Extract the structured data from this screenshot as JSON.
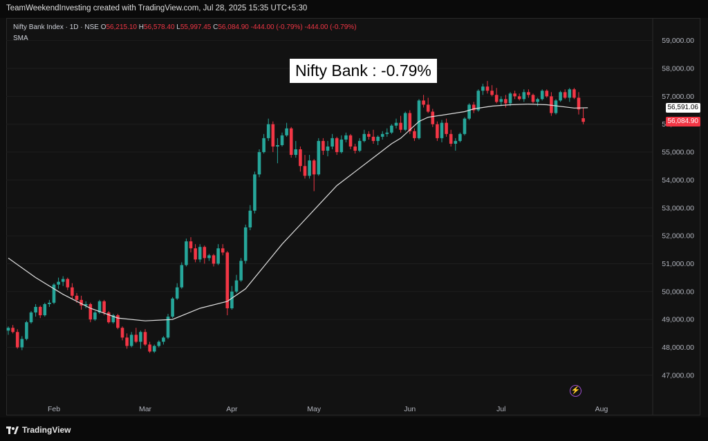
{
  "header": {
    "attribution": "TeamWeekendInvesting created with TradingView.com, Jul 28, 2025 15:35 UTC+5:30"
  },
  "legend": {
    "name": "Nifty Bank Index · 1D · NSE",
    "open_label": "O",
    "open": "56,215.10",
    "high_label": "H",
    "high": "56,578.40",
    "low_label": "L",
    "low": "55,997.45",
    "close_label": "C",
    "close": "56,084.90",
    "change": "-444.00 (-0.79%)",
    "change2": "-444.00 (-0.79%)",
    "indicator": "SMA"
  },
  "annotation": "Nifty Bank : -0.79%",
  "price_tags": {
    "sma": "56,591.06",
    "last": "56,084.90"
  },
  "footer": {
    "brand": "TradingView"
  },
  "colors": {
    "up": "#26a69a",
    "down": "#f23645",
    "sma": "#e0e0e0",
    "background": "#121212",
    "grid": "#1e1e1e",
    "axis_text": "#b2b5be",
    "tag_sma_bg": "#ffffff",
    "tag_last_bg": "#f23645"
  },
  "chart_data": {
    "type": "candlestick",
    "title": "",
    "ylim": [
      46000,
      59500
    ],
    "yticks": [
      47000,
      48000,
      49000,
      50000,
      51000,
      52000,
      53000,
      54000,
      55000,
      56000,
      57000,
      58000,
      59000
    ],
    "ytick_labels": [
      "47,000.00",
      "48,000.00",
      "49,000.00",
      "50,000.00",
      "51,000.00",
      "52,000.00",
      "53,000.00",
      "54,000.00",
      "55,000.00",
      "56,000.00",
      "57,000.00",
      "58,000.00",
      "59,000.00"
    ],
    "xaxis_labels": [
      {
        "label": "Feb",
        "index": 10
      },
      {
        "label": "Mar",
        "index": 30
      },
      {
        "label": "Apr",
        "index": 49
      },
      {
        "label": "May",
        "index": 67
      },
      {
        "label": "Jun",
        "index": 88
      },
      {
        "label": "Jul",
        "index": 108
      },
      {
        "label": "Aug",
        "index": 130
      }
    ],
    "candles": [
      [
        48600,
        48750,
        48450,
        48700
      ],
      [
        48700,
        48800,
        48500,
        48550
      ],
      [
        48550,
        48650,
        47950,
        48000
      ],
      [
        48000,
        48400,
        47900,
        48300
      ],
      [
        48300,
        48950,
        48250,
        48900
      ],
      [
        48900,
        49300,
        48850,
        49250
      ],
      [
        49250,
        49550,
        49100,
        49450
      ],
      [
        49450,
        49500,
        49050,
        49150
      ],
      [
        49150,
        49600,
        49100,
        49550
      ],
      [
        49550,
        49700,
        49450,
        49600
      ],
      [
        49600,
        50300,
        49550,
        50250
      ],
      [
        50250,
        50500,
        50100,
        50350
      ],
      [
        50350,
        50550,
        50200,
        50450
      ],
      [
        50450,
        50500,
        50050,
        50150
      ],
      [
        50150,
        50300,
        49750,
        49850
      ],
      [
        49850,
        49950,
        49600,
        49700
      ],
      [
        49700,
        49850,
        49350,
        49500
      ],
      [
        49500,
        49650,
        49400,
        49550
      ],
      [
        49550,
        49600,
        48900,
        49000
      ],
      [
        49000,
        49300,
        48950,
        49250
      ],
      [
        49250,
        49700,
        49200,
        49650
      ],
      [
        49650,
        49700,
        49150,
        49250
      ],
      [
        49250,
        49300,
        48850,
        48900
      ],
      [
        48900,
        49200,
        48850,
        49150
      ],
      [
        49150,
        49200,
        48650,
        48700
      ],
      [
        48700,
        48750,
        48250,
        48350
      ],
      [
        48350,
        48500,
        47950,
        48050
      ],
      [
        48050,
        48550,
        48000,
        48450
      ],
      [
        48450,
        48700,
        48150,
        48200
      ],
      [
        48200,
        48600,
        47950,
        48550
      ],
      [
        48550,
        48650,
        48050,
        48100
      ],
      [
        48100,
        48200,
        47800,
        47850
      ],
      [
        47850,
        48100,
        47800,
        48050
      ],
      [
        48050,
        48250,
        48000,
        48200
      ],
      [
        48200,
        48400,
        48100,
        48350
      ],
      [
        48350,
        49200,
        48300,
        49100
      ],
      [
        49100,
        49800,
        49050,
        49750
      ],
      [
        49750,
        50300,
        49700,
        50150
      ],
      [
        50150,
        51050,
        50100,
        50950
      ],
      [
        50950,
        51900,
        50900,
        51800
      ],
      [
        51800,
        51950,
        51400,
        51550
      ],
      [
        51550,
        51700,
        51050,
        51150
      ],
      [
        51150,
        51700,
        51050,
        51600
      ],
      [
        51600,
        51650,
        51000,
        51200
      ],
      [
        51200,
        51350,
        51100,
        51300
      ],
      [
        51300,
        51350,
        50900,
        51000
      ],
      [
        51000,
        51700,
        50950,
        51550
      ],
      [
        51550,
        51700,
        51300,
        51400
      ],
      [
        51400,
        51450,
        49150,
        49400
      ],
      [
        49400,
        50200,
        49350,
        50000
      ],
      [
        50000,
        50600,
        49950,
        50400
      ],
      [
        50400,
        51200,
        50350,
        51100
      ],
      [
        51100,
        52400,
        51000,
        52300
      ],
      [
        52300,
        53100,
        52200,
        52900
      ],
      [
        52900,
        54300,
        52800,
        54200
      ],
      [
        54200,
        55100,
        54100,
        55000
      ],
      [
        55000,
        55650,
        54950,
        55500
      ],
      [
        55500,
        56200,
        55400,
        56000
      ],
      [
        56000,
        56100,
        55000,
        55200
      ],
      [
        55200,
        55500,
        54600,
        55250
      ],
      [
        55250,
        55700,
        55200,
        55600
      ],
      [
        55600,
        56050,
        55550,
        55850
      ],
      [
        55850,
        55900,
        54800,
        54900
      ],
      [
        54900,
        55400,
        54800,
        55100
      ],
      [
        55100,
        55200,
        54300,
        54500
      ],
      [
        54500,
        54900,
        54050,
        54150
      ],
      [
        54150,
        54900,
        54050,
        54700
      ],
      [
        54700,
        54750,
        53600,
        54200
      ],
      [
        54200,
        55500,
        54150,
        55400
      ],
      [
        55400,
        55500,
        54900,
        55050
      ],
      [
        55050,
        55400,
        54850,
        55200
      ],
      [
        55200,
        55650,
        55100,
        55500
      ],
      [
        55500,
        55550,
        54900,
        55000
      ],
      [
        55000,
        55600,
        54950,
        55450
      ],
      [
        55450,
        55700,
        55350,
        55600
      ],
      [
        55600,
        55650,
        55100,
        55200
      ],
      [
        55200,
        55300,
        54950,
        55050
      ],
      [
        55050,
        55500,
        55000,
        55400
      ],
      [
        55400,
        55800,
        55350,
        55650
      ],
      [
        55650,
        55750,
        55450,
        55550
      ],
      [
        55550,
        55800,
        55300,
        55400
      ],
      [
        55400,
        55600,
        55250,
        55550
      ],
      [
        55550,
        55750,
        55450,
        55650
      ],
      [
        55650,
        55850,
        55550,
        55700
      ],
      [
        55700,
        56000,
        55650,
        55950
      ],
      [
        55950,
        56200,
        55850,
        56050
      ],
      [
        56050,
        56300,
        55700,
        55800
      ],
      [
        55800,
        56450,
        55750,
        56400
      ],
      [
        56400,
        56500,
        55650,
        55750
      ],
      [
        55750,
        55850,
        55400,
        55500
      ],
      [
        55500,
        56900,
        55450,
        56850
      ],
      [
        56850,
        57050,
        56600,
        56700
      ],
      [
        56700,
        56950,
        56400,
        56450
      ],
      [
        56450,
        56550,
        55900,
        56000
      ],
      [
        56000,
        56100,
        55400,
        55500
      ],
      [
        55500,
        56150,
        55350,
        56050
      ],
      [
        56050,
        56200,
        55550,
        55650
      ],
      [
        55650,
        55800,
        55200,
        55300
      ],
      [
        55300,
        55500,
        55050,
        55400
      ],
      [
        55400,
        55700,
        55350,
        55650
      ],
      [
        55650,
        56250,
        55600,
        56200
      ],
      [
        56200,
        56750,
        56150,
        56700
      ],
      [
        56700,
        56800,
        56400,
        56500
      ],
      [
        56500,
        57250,
        56450,
        57200
      ],
      [
        57200,
        57450,
        57050,
        57350
      ],
      [
        57350,
        57550,
        57100,
        57200
      ],
      [
        57200,
        57400,
        57000,
        57050
      ],
      [
        57050,
        57300,
        56750,
        56800
      ],
      [
        56800,
        57000,
        56650,
        56900
      ],
      [
        56900,
        57050,
        56600,
        56750
      ],
      [
        56750,
        57150,
        56650,
        57100
      ],
      [
        57100,
        57200,
        56900,
        57000
      ],
      [
        57000,
        57100,
        56850,
        56900
      ],
      [
        56900,
        57250,
        56800,
        57150
      ],
      [
        57150,
        57250,
        56950,
        57050
      ],
      [
        57050,
        57100,
        56750,
        56800
      ],
      [
        56800,
        56950,
        56650,
        56900
      ],
      [
        56900,
        57250,
        56850,
        57200
      ],
      [
        57200,
        57250,
        56950,
        57000
      ],
      [
        57000,
        57150,
        56300,
        56400
      ],
      [
        56400,
        56900,
        56350,
        56850
      ],
      [
        56850,
        57200,
        56800,
        57150
      ],
      [
        57150,
        57250,
        56900,
        56950
      ],
      [
        56950,
        57300,
        56800,
        57250
      ],
      [
        57250,
        57300,
        56900,
        56950
      ],
      [
        56950,
        57150,
        56350,
        56528.9
      ],
      [
        56215.1,
        56578.4,
        55997.45,
        56084.9
      ]
    ],
    "sma": [
      [
        0,
        51200
      ],
      [
        6,
        50500
      ],
      [
        12,
        49900
      ],
      [
        18,
        49400
      ],
      [
        24,
        49050
      ],
      [
        30,
        48950
      ],
      [
        36,
        49000
      ],
      [
        42,
        49400
      ],
      [
        48,
        49650
      ],
      [
        52,
        50100
      ],
      [
        56,
        50900
      ],
      [
        60,
        51700
      ],
      [
        64,
        52400
      ],
      [
        68,
        53100
      ],
      [
        72,
        53800
      ],
      [
        76,
        54300
      ],
      [
        80,
        54800
      ],
      [
        84,
        55300
      ],
      [
        86,
        55500
      ],
      [
        88,
        55800
      ],
      [
        90,
        56100
      ],
      [
        92,
        56250
      ],
      [
        96,
        56350
      ],
      [
        100,
        56450
      ],
      [
        102,
        56550
      ],
      [
        106,
        56650
      ],
      [
        110,
        56700
      ],
      [
        114,
        56720
      ],
      [
        118,
        56700
      ],
      [
        124,
        56580
      ],
      [
        127,
        56591.06
      ]
    ]
  }
}
